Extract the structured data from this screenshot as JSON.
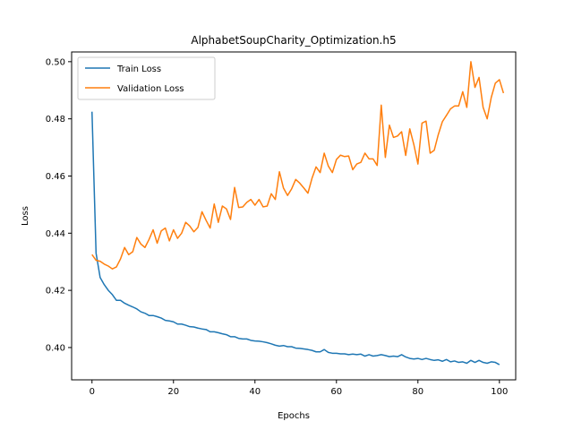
{
  "chart_data": {
    "type": "line",
    "title": "AlphabetSoupCharity_Optimization.h5",
    "xlabel": "Epochs",
    "ylabel": "Loss",
    "xlim": [
      -5,
      104
    ],
    "ylim": [
      0.3887,
      0.5034
    ],
    "xticks": [
      0,
      20,
      40,
      60,
      80,
      100
    ],
    "yticks": [
      0.4,
      0.42,
      0.44,
      0.46,
      0.48,
      0.5
    ],
    "ytick_labels": [
      "0.40",
      "0.42",
      "0.44",
      "0.46",
      "0.48",
      "0.50"
    ],
    "legend": {
      "position": "upper-left"
    },
    "series": [
      {
        "name": "Train Loss",
        "color": "#1f77b4",
        "values": [
          0.4825,
          0.433,
          0.4245,
          0.422,
          0.42,
          0.4185,
          0.4165,
          0.4165,
          0.4155,
          0.4148,
          0.4142,
          0.4135,
          0.4125,
          0.412,
          0.4112,
          0.4112,
          0.4108,
          0.4103,
          0.4095,
          0.4093,
          0.409,
          0.4082,
          0.4082,
          0.4078,
          0.4073,
          0.4072,
          0.4068,
          0.4065,
          0.4063,
          0.4055,
          0.4055,
          0.4052,
          0.4048,
          0.4045,
          0.4038,
          0.4038,
          0.4032,
          0.403,
          0.403,
          0.4025,
          0.4023,
          0.4022,
          0.402,
          0.4017,
          0.4013,
          0.4008,
          0.4005,
          0.4007,
          0.4003,
          0.4003,
          0.3998,
          0.3997,
          0.3995,
          0.3993,
          0.399,
          0.3985,
          0.3985,
          0.3993,
          0.3983,
          0.398,
          0.398,
          0.3978,
          0.3978,
          0.3975,
          0.3977,
          0.3975,
          0.3977,
          0.397,
          0.3975,
          0.397,
          0.3972,
          0.3975,
          0.3972,
          0.3968,
          0.397,
          0.3968,
          0.3975,
          0.3967,
          0.3962,
          0.396,
          0.3962,
          0.3958,
          0.3962,
          0.3958,
          0.3955,
          0.3957,
          0.3952,
          0.3958,
          0.395,
          0.3953,
          0.3948,
          0.395,
          0.3945,
          0.3955,
          0.3948,
          0.3955,
          0.3948,
          0.3945,
          0.395,
          0.3948,
          0.394
        ]
      },
      {
        "name": "Validation Loss",
        "color": "#ff7f0e",
        "values": [
          0.4325,
          0.4305,
          0.4302,
          0.4292,
          0.4285,
          0.4275,
          0.4282,
          0.431,
          0.435,
          0.4325,
          0.4335,
          0.4385,
          0.4362,
          0.435,
          0.4378,
          0.4412,
          0.4365,
          0.4408,
          0.4418,
          0.4373,
          0.4412,
          0.4382,
          0.44,
          0.4438,
          0.4425,
          0.4405,
          0.442,
          0.4475,
          0.4445,
          0.4418,
          0.4502,
          0.4438,
          0.4495,
          0.4485,
          0.4448,
          0.456,
          0.449,
          0.4492,
          0.4508,
          0.4518,
          0.4498,
          0.4518,
          0.4492,
          0.4495,
          0.4538,
          0.4518,
          0.4615,
          0.4558,
          0.4532,
          0.4555,
          0.4588,
          0.4575,
          0.4558,
          0.454,
          0.4592,
          0.4632,
          0.4612,
          0.468,
          0.4635,
          0.4612,
          0.4658,
          0.4673,
          0.4668,
          0.467,
          0.4622,
          0.4642,
          0.4648,
          0.468,
          0.466,
          0.466,
          0.4637,
          0.4848,
          0.4665,
          0.4778,
          0.4735,
          0.474,
          0.4755,
          0.4672,
          0.4765,
          0.471,
          0.4642,
          0.4785,
          0.4792,
          0.468,
          0.469,
          0.4745,
          0.479,
          0.4812,
          0.4835,
          0.4845,
          0.4845,
          0.4895,
          0.484,
          0.5,
          0.491,
          0.4945,
          0.484,
          0.48,
          0.4875,
          0.4925,
          0.4937,
          0.489
        ]
      }
    ]
  }
}
